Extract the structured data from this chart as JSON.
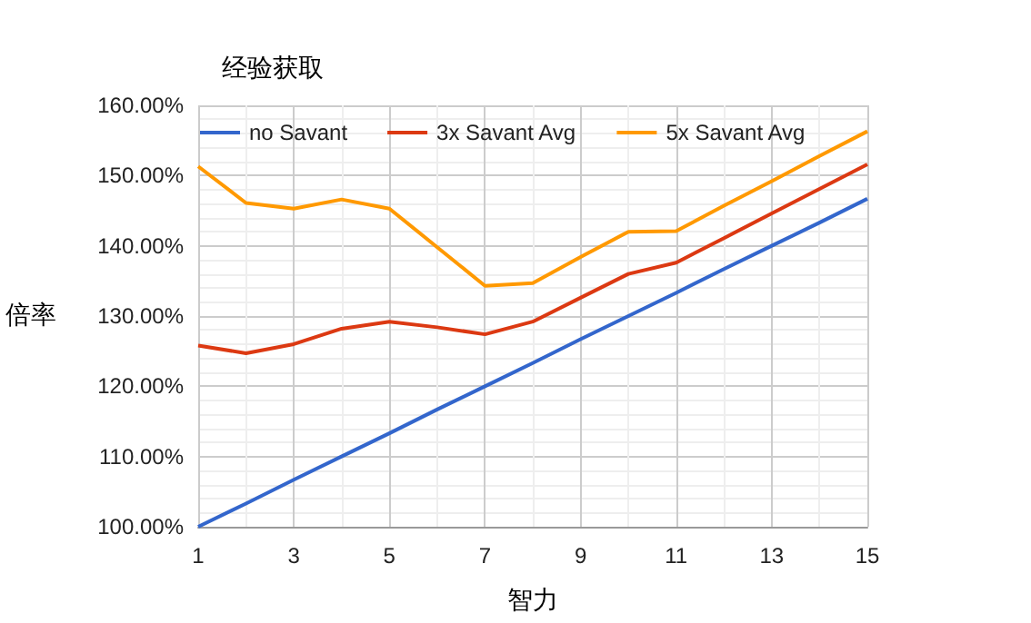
{
  "chart_data": {
    "type": "line",
    "title": "经验获取",
    "xlabel": "智力",
    "ylabel": "倍率",
    "x": [
      1,
      2,
      3,
      4,
      5,
      6,
      7,
      8,
      9,
      10,
      11,
      12,
      13,
      14,
      15
    ],
    "series": [
      {
        "name": "no Savant",
        "color": "#3366cc",
        "values": [
          100,
          103.3,
          106.7,
          110,
          113.3,
          116.7,
          120,
          123.3,
          126.7,
          130,
          133.3,
          136.7,
          140,
          143.3,
          146.7
        ]
      },
      {
        "name": "3x Savant Avg",
        "color": "#dc3912",
        "values": [
          125.8,
          124.7,
          126,
          128.2,
          129.2,
          128.4,
          127.4,
          129.2,
          132.6,
          136,
          137.6,
          141.1,
          144.6,
          148.1,
          151.6
        ]
      },
      {
        "name": "5x Savant Avg",
        "color": "#ff9900",
        "values": [
          151.3,
          146.1,
          145.3,
          146.6,
          145.3,
          139.8,
          134.3,
          134.7,
          138.4,
          142,
          142.1,
          145.7,
          149.2,
          152.8,
          156.3
        ]
      }
    ],
    "xlim": [
      1,
      15
    ],
    "xticks": [
      1,
      3,
      5,
      7,
      9,
      11,
      13,
      15
    ],
    "ylim": [
      100,
      160
    ],
    "yticks": [
      {
        "value": 100,
        "label": "100.00%"
      },
      {
        "value": 110,
        "label": "110.00%"
      },
      {
        "value": 120,
        "label": "120.00%"
      },
      {
        "value": 130,
        "label": "130.00%"
      },
      {
        "value": 140,
        "label": "140.00%"
      },
      {
        "value": 150,
        "label": "150.00%"
      },
      {
        "value": 160,
        "label": "160.00%"
      }
    ],
    "grid": true,
    "legend": "top",
    "marker": "none",
    "line_style": "solid"
  }
}
